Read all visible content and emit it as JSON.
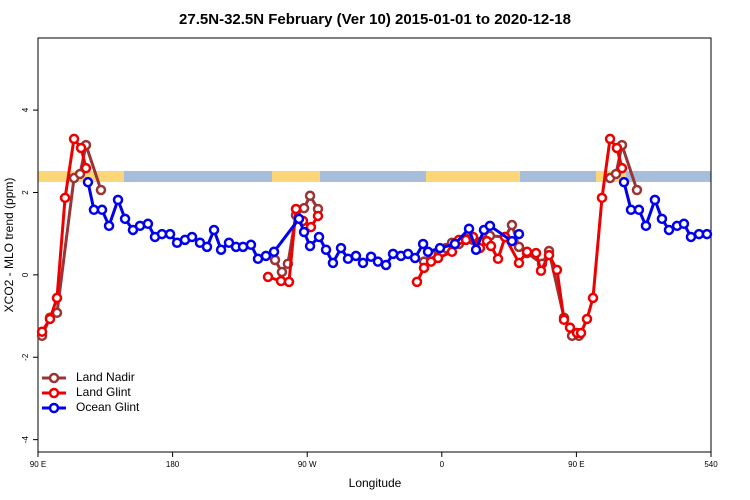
{
  "chart_data": {
    "type": "line",
    "title": "27.5N-32.5N February (Ver 10)   2015-01-01 to 2020-12-18",
    "xlabel": "Longitude",
    "ylabel": "XCO2 - MLO trend (ppm)",
    "xlim": [
      90,
      540
    ],
    "xticks": [
      {
        "value": 90,
        "label": "90 E"
      },
      180,
      {
        "value": 270,
        "label": "90 W"
      },
      {
        "value": 360,
        "label": "0"
      },
      {
        "value": 450,
        "label": "90 E"
      },
      540
    ],
    "ylim": [
      -4.3,
      5.75
    ],
    "yticks": [
      -4,
      -2,
      0,
      2,
      4
    ],
    "legend": "bottomleft",
    "series": [
      {
        "name": "Land Nadir",
        "color": "#9b3434",
        "x": [
          92.7,
          98.0,
          102.7,
          114.1,
          118.1,
          122.1,
          132.1,
          null,
          248.5,
          253.1,
          257.1,
          262.5,
          267.9,
          271.9,
          277.2,
          null,
          348.1,
          352.8,
          362.8,
          366.8,
          371.5,
          376.2,
          380.9,
          392.2,
          402.3,
          406.9,
          411.6,
          417.0,
          427.0,
          431.7,
          441.7,
          447.1,
          451.7,
          null,
          472.5,
          476.5,
          480.5,
          490.5
        ],
        "values": [
          -1.48,
          -1.04,
          -0.92,
          2.35,
          2.45,
          3.15,
          2.06,
          null,
          0.36,
          0.07,
          0.27,
          1.45,
          1.62,
          1.92,
          1.6,
          null,
          0.32,
          0.51,
          0.65,
          0.78,
          0.75,
          0.87,
          0.85,
          0.95,
          0.92,
          1.21,
          0.68,
          0.53,
          0.27,
          0.58,
          -1.04,
          -1.48,
          -1.48,
          null,
          2.35,
          2.45,
          3.15,
          2.06
        ]
      },
      {
        "name": "Land Glint",
        "color": "#ee0000",
        "x": [
          92.7,
          98.0,
          102.7,
          108.1,
          114.1,
          118.8,
          122.1,
          null,
          243.8,
          252.5,
          257.8,
          262.5,
          267.2,
          272.5,
          277.2,
          null,
          343.4,
          348.1,
          352.8,
          357.5,
          366.8,
          371.5,
          376.2,
          380.9,
          385.5,
          390.2,
          392.9,
          397.6,
          402.3,
          411.6,
          417.0,
          423.0,
          426.3,
          431.7,
          437.0,
          441.7,
          445.7,
          450.4,
          453.1,
          457.1,
          461.1,
          467.1,
          472.5,
          477.1,
          480.5
        ],
        "values": [
          -1.38,
          -1.07,
          -0.56,
          1.87,
          3.3,
          3.08,
          2.59,
          null,
          -0.05,
          -0.15,
          -0.17,
          1.6,
          1.31,
          1.16,
          1.43,
          null,
          -0.17,
          0.17,
          0.32,
          0.41,
          0.56,
          0.85,
          0.85,
          0.92,
          0.65,
          0.82,
          0.7,
          0.39,
          0.92,
          0.29,
          0.56,
          0.53,
          0.1,
          0.48,
          0.12,
          -1.09,
          -1.28,
          -1.41,
          -1.41,
          -1.07,
          -0.56,
          1.87,
          3.3,
          3.08,
          2.59
        ]
      },
      {
        "name": "Ocean Glint",
        "color": "#0000ee",
        "x": [
          123.4,
          127.4,
          132.8,
          137.5,
          143.5,
          148.2,
          153.5,
          158.2,
          163.5,
          168.2,
          172.9,
          178.3,
          183.0,
          188.3,
          193.0,
          198.3,
          203.0,
          207.7,
          212.4,
          217.7,
          222.4,
          227.1,
          232.4,
          237.1,
          242.4,
          247.8,
          264.5,
          267.9,
          271.9,
          277.9,
          282.6,
          287.2,
          292.6,
          297.3,
          302.6,
          307.3,
          312.7,
          317.3,
          322.7,
          327.4,
          332.7,
          337.4,
          342.1,
          347.5,
          350.8,
          358.8,
          368.8,
          378.2,
          382.9,
          388.2,
          392.2,
          406.9,
          411.6,
          null,
          481.8,
          486.5,
          491.8,
          496.5,
          502.5,
          507.2,
          511.9,
          517.3,
          521.9,
          526.6,
          532.0,
          537.3
        ],
        "values": [
          2.25,
          1.58,
          1.58,
          1.19,
          1.82,
          1.36,
          1.09,
          1.19,
          1.24,
          0.92,
          0.99,
          0.99,
          0.78,
          0.85,
          0.92,
          0.78,
          0.68,
          1.09,
          0.61,
          0.78,
          0.68,
          0.68,
          0.73,
          0.39,
          0.46,
          0.56,
          1.36,
          1.04,
          0.7,
          0.92,
          0.61,
          0.29,
          0.65,
          0.39,
          0.46,
          0.29,
          0.44,
          0.32,
          0.24,
          0.51,
          0.46,
          0.51,
          0.41,
          0.75,
          0.56,
          0.65,
          0.75,
          1.12,
          0.61,
          1.09,
          1.19,
          0.82,
          0.99,
          null,
          2.25,
          1.58,
          1.58,
          1.19,
          1.82,
          1.36,
          1.09,
          1.19,
          1.24,
          0.92,
          0.99,
          0.99
        ]
      }
    ]
  }
}
